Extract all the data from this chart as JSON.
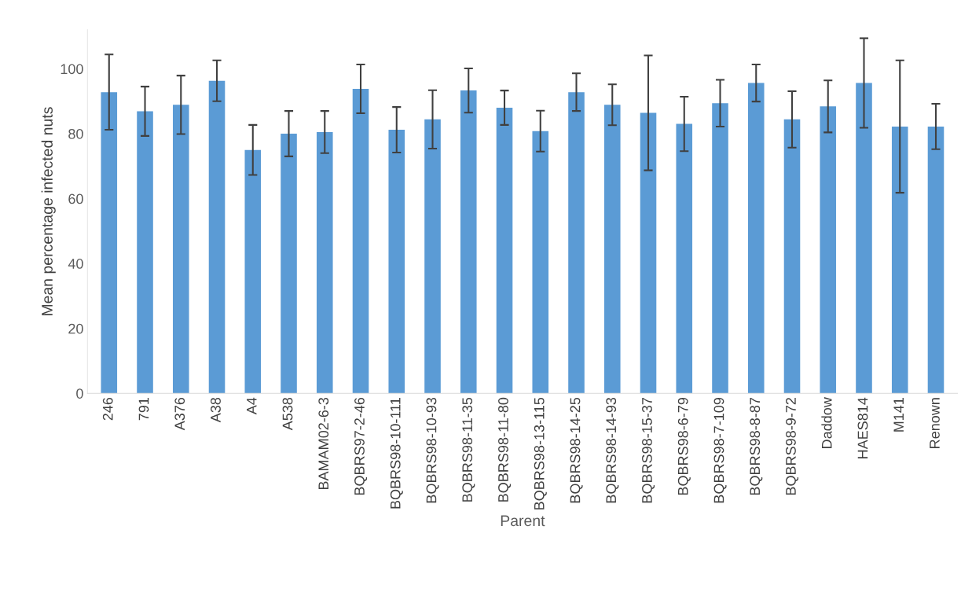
{
  "chart_data": {
    "type": "bar",
    "xlabel": "Parent",
    "ylabel": "Mean percentage infected nuts",
    "categories": [
      "246",
      "791",
      "A376",
      "A38",
      "A4",
      "A538",
      "BAMAM02-6-3",
      "BQBRS97-2-46",
      "BQBRS98-10-111",
      "BQBRS98-10-93",
      "BQBRS98-11-35",
      "BQBRS98-11-80",
      "BQBRS98-13-115",
      "BQBRS98-14-25",
      "BQBRS98-14-93",
      "BQBRS98-15-37",
      "BQBRS98-6-79",
      "BQBRS98-7-109",
      "BQBRS98-8-87",
      "BQBRS98-9-72",
      "Daddow",
      "HAES814",
      "M141",
      "Renown"
    ],
    "values": [
      92.8,
      86.9,
      88.9,
      96.3,
      75,
      80,
      80.5,
      93.8,
      81.2,
      84.4,
      93.3,
      88,
      80.8,
      92.8,
      88.9,
      86.4,
      83,
      89.4,
      95.6,
      84.4,
      88.4,
      95.6,
      82.2,
      82.2
    ],
    "errors": [
      11.6,
      7.6,
      9,
      6.3,
      7.7,
      7,
      6.5,
      7.5,
      7,
      9,
      6.8,
      5.3,
      6.3,
      5.8,
      6.3,
      17.7,
      8.4,
      7.2,
      5.7,
      8.7,
      8,
      13.8,
      20.4,
      7
    ],
    "color": "#5b9bd5",
    "ylim": [
      0,
      112
    ],
    "yticks": [
      0,
      20,
      40,
      60,
      80,
      100
    ],
    "grid": false,
    "legend": false
  }
}
